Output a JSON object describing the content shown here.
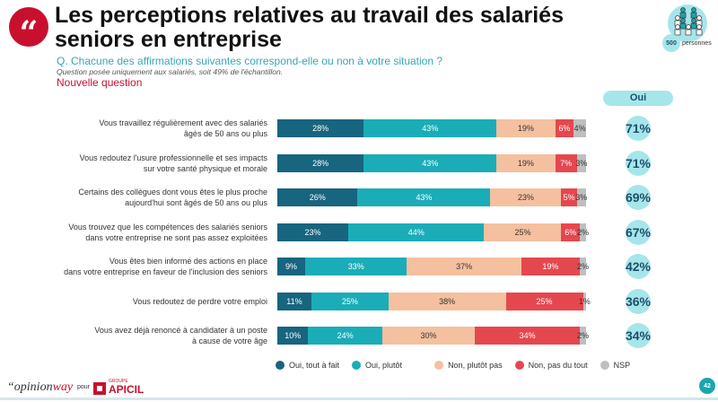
{
  "header": {
    "title": "Les perceptions relatives au travail des salariés seniors en entreprise",
    "question": "Q. Chacune des affirmations suivantes correspond-elle ou non à votre situation ?",
    "note": "Question posée uniquement aux salariés, soit 49% de l'échantillon.",
    "new_question": "Nouvelle question",
    "quote_glyph": "“",
    "sample_count": "500",
    "sample_label": "personnes",
    "sample_icon": "people-group-icon"
  },
  "oui_header": "Oui",
  "colors": {
    "oui_tout_a_fait": "#17657f",
    "oui_plutot": "#1aadb8",
    "non_plutot_pas": "#f5c09f",
    "non_pas_du_tout": "#e5474f",
    "nsp": "#bfbfbf",
    "brand_red": "#c8102e",
    "accent_teal": "#a6e6ea"
  },
  "chart_data": {
    "type": "bar",
    "orientation": "horizontal-stacked-100",
    "title": "Les perceptions relatives au travail des salariés seniors en entreprise",
    "xlabel": "",
    "ylabel": "",
    "xlim": [
      0,
      100
    ],
    "unit": "%",
    "legend_position": "bottom",
    "categories": [
      "Vous travaillez régulièrement avec des salariés âgés de 50 ans ou plus",
      "Vous redoutez l'usure professionnelle et ses impacts sur votre santé physique et morale",
      "Certains des collègues dont vous êtes le plus proche aujourd'hui sont âgés de 50 ans ou plus",
      "Vous trouvez que les compétences des salariés seniors dans votre entreprise ne sont pas assez exploitées",
      "Vous êtes bien informé des actions en place dans votre entreprise en faveur de l'inclusion des seniors",
      "Vous redoutez de perdre votre emploi",
      "Vous avez déjà renoncé à candidater à un poste à cause de votre âge"
    ],
    "category_lines": [
      [
        "Vous travaillez régulièrement avec des salariés",
        "âgés de 50 ans ou plus"
      ],
      [
        "Vous redoutez l'usure professionnelle et ses impacts",
        "sur votre santé physique et morale"
      ],
      [
        "Certains des collègues dont vous êtes le plus proche",
        "aujourd'hui sont âgés de 50 ans ou plus"
      ],
      [
        "Vous trouvez que les compétences des salariés seniors",
        "dans votre entreprise ne sont pas assez exploitées"
      ],
      [
        "Vous êtes bien informé des actions en place",
        "dans votre entreprise en faveur de l'inclusion des seniors"
      ],
      [
        "Vous redoutez de perdre votre emploi"
      ],
      [
        "Vous avez déjà renoncé à candidater à un poste",
        "à cause de votre âge"
      ]
    ],
    "series": [
      {
        "name": "Oui, tout à fait",
        "color": "#17657f",
        "values": [
          28,
          28,
          26,
          23,
          9,
          11,
          10
        ]
      },
      {
        "name": "Oui, plutôt",
        "color": "#1aadb8",
        "values": [
          43,
          43,
          43,
          44,
          33,
          25,
          24
        ]
      },
      {
        "name": "Non, plutôt pas",
        "color": "#f5c09f",
        "values": [
          19,
          19,
          23,
          25,
          37,
          38,
          30
        ]
      },
      {
        "name": "Non, pas du tout",
        "color": "#e5474f",
        "values": [
          6,
          7,
          5,
          6,
          19,
          25,
          34
        ]
      },
      {
        "name": "NSP",
        "color": "#bfbfbf",
        "values": [
          4,
          3,
          3,
          2,
          2,
          1,
          2
        ]
      }
    ],
    "totals_oui": {
      "label": "Oui",
      "values": [
        71,
        71,
        69,
        67,
        42,
        36,
        34
      ]
    }
  },
  "footer": {
    "brand_prefix": "“opinion",
    "brand_suffix": "way",
    "pour": "pour",
    "partner_groupe": "GROUPE",
    "partner_name": "APICIL",
    "page_number": "42"
  }
}
